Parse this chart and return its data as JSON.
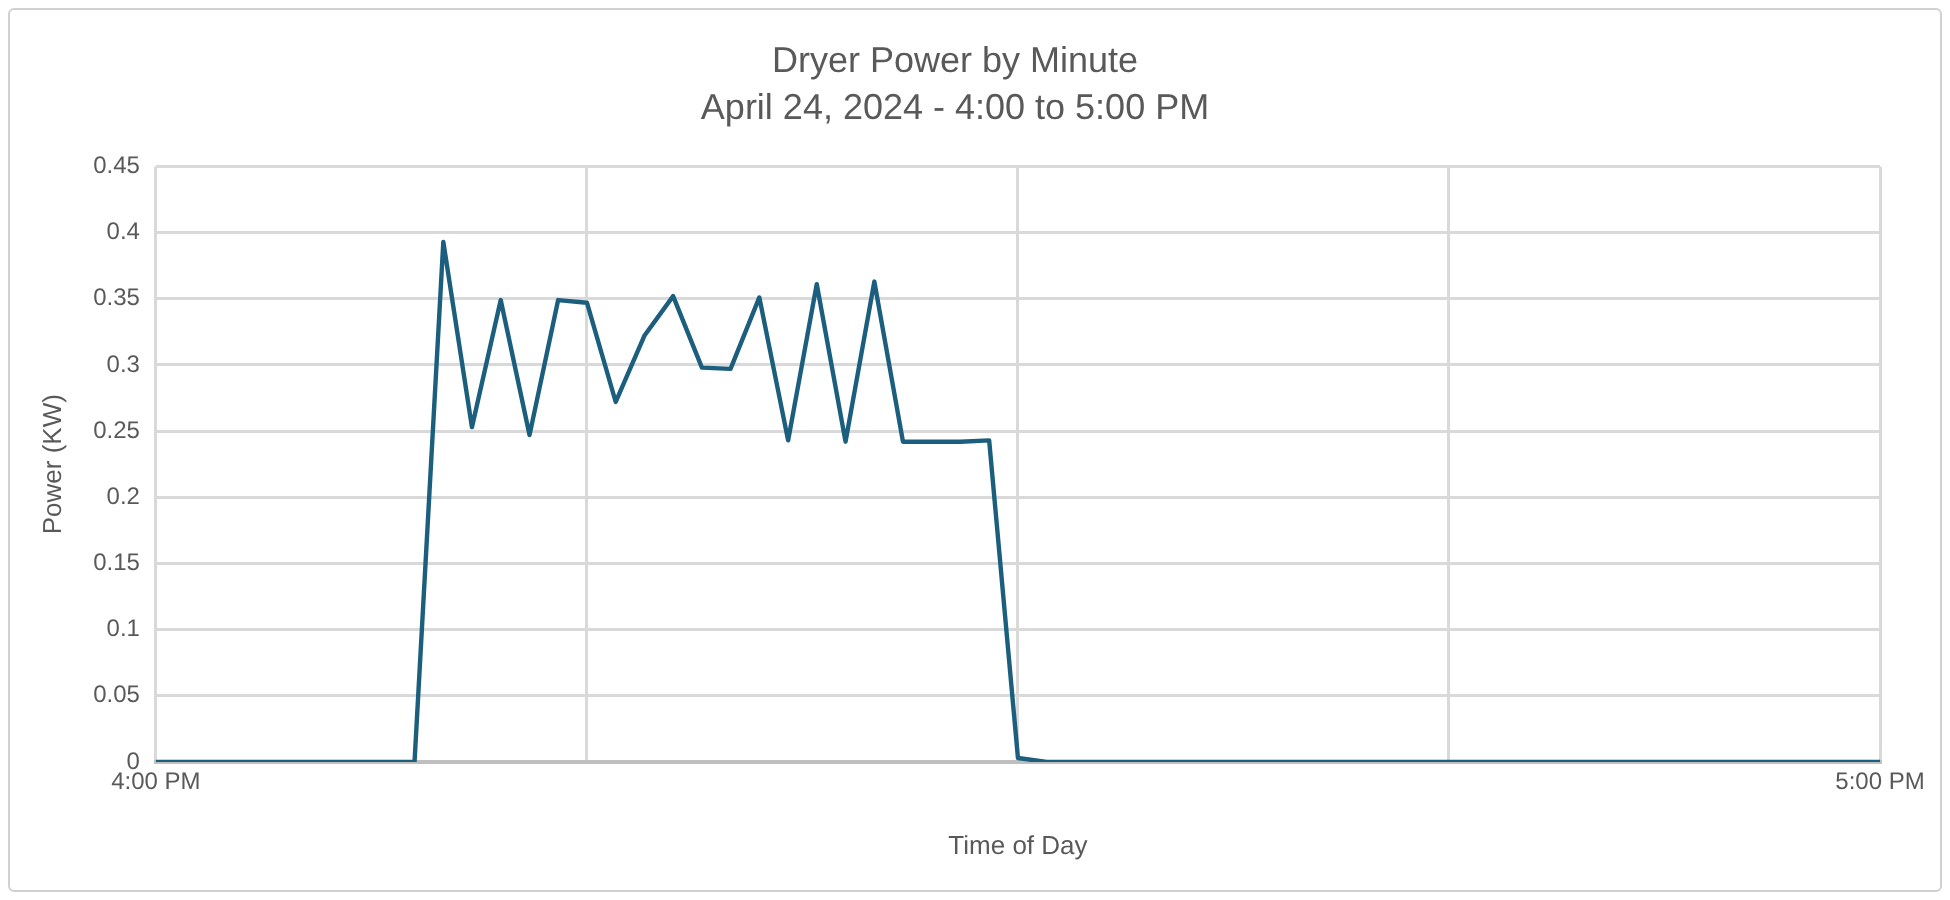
{
  "chart_data": {
    "type": "line",
    "title": "Dryer Power by Minute",
    "subtitle": "April 24, 2024 - 4:00 to 5:00 PM",
    "xlabel": "Time of Day",
    "ylabel": "Power (KW)",
    "x": [
      16,
      16.15,
      16.1667,
      16.1833,
      16.2,
      16.2167,
      16.2333,
      16.25,
      16.2667,
      16.2833,
      16.3,
      16.3167,
      16.3333,
      16.35,
      16.3667,
      16.3833,
      16.4,
      16.4167,
      16.4333,
      16.45,
      16.4667,
      16.4833,
      16.5,
      16.5167,
      17
    ],
    "series": [
      {
        "color": "#1b5e7e",
        "values": [
          0,
          0,
          0.393,
          0.253,
          0.349,
          0.247,
          0.349,
          0.347,
          0.272,
          0.322,
          0.352,
          0.298,
          0.297,
          0.351,
          0.243,
          0.361,
          0.242,
          0.363,
          0.242,
          0.242,
          0.242,
          0.243,
          0.003,
          0,
          0
        ]
      }
    ],
    "xlim": [
      16,
      17
    ],
    "xticks": [
      {
        "value": 16,
        "label": "4:00 PM"
      },
      {
        "value": 16.25,
        "label": null
      },
      {
        "value": 16.5,
        "label": null
      },
      {
        "value": 16.75,
        "label": null
      },
      {
        "value": 17,
        "label": "5:00 PM"
      }
    ],
    "ylim": [
      0,
      0.45
    ],
    "yticks": [
      0,
      0.05,
      0.1,
      0.15,
      0.2,
      0.25,
      0.3,
      0.35,
      0.4,
      0.45
    ],
    "grid": true,
    "legend": false,
    "marker": "none",
    "line_style": "solid"
  }
}
